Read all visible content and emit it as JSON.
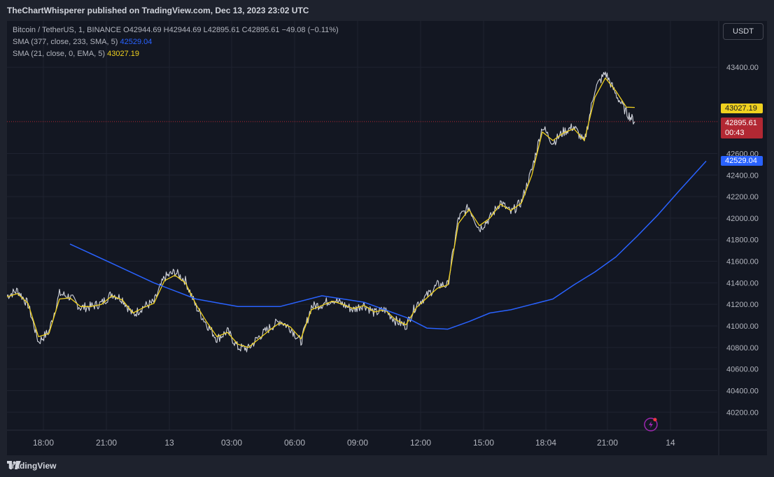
{
  "header": {
    "publisher_line": "TheChartWhisperer published on TradingView.com, Dec 13, 2023 23:02 UTC"
  },
  "legend": {
    "symbol": "Bitcoin / TetherUS, 1, BINANCE",
    "open_label": "O",
    "open": "42944.69",
    "high_label": "H",
    "high": "42944.69",
    "low_label": "L",
    "low": "42895.61",
    "close_label": "C",
    "close": "42895.61",
    "change": "−49.08 (−0.11%)",
    "sma1_label": "SMA (377, close, 233, SMA, 5)",
    "sma1_value": "42529.04",
    "sma2_label": "SMA (21, close, 0, EMA, 5)",
    "sma2_value": "43027.19"
  },
  "currency_button": "USDT",
  "price_tags": {
    "sma2": "43027.19",
    "last_price": "42895.61",
    "countdown": "00:43",
    "sma1": "42529.04"
  },
  "footer": {
    "brand": "TradingView"
  },
  "colors": {
    "background": "#131722",
    "price": "#d1d4dc",
    "sma_blue": "#2962ff",
    "ema_yellow": "#f0d11f",
    "last_price_red": "#b22833"
  },
  "chart_data": {
    "type": "line",
    "yticks": [
      40200,
      40400,
      40600,
      40800,
      41000,
      41200,
      41400,
      41600,
      41800,
      42000,
      42200,
      42400,
      42600,
      43400
    ],
    "xticks": [
      "18:00",
      "21:00",
      "13",
      "03:00",
      "06:00",
      "09:00",
      "12:00",
      "15:00",
      "18:04",
      "21:00",
      "14"
    ],
    "ylim": [
      40000,
      43700
    ],
    "series": [
      {
        "style": "price",
        "x": [
          0,
          0.5,
          1,
          1.5,
          2,
          2.5,
          3,
          3.5,
          4,
          4.5,
          5,
          5.5,
          6,
          6.5,
          7,
          7.5,
          8,
          8.5,
          9,
          9.5,
          10,
          10.5,
          11,
          11.5,
          12,
          12.5,
          13,
          13.5,
          14,
          14.5,
          15,
          15.5,
          16,
          16.5,
          17,
          17.5,
          18,
          18.5,
          19,
          19.5,
          20,
          20.5,
          21,
          21.5,
          22,
          22.5,
          23,
          23.5,
          24,
          24.5,
          25,
          25.5,
          26,
          26.5,
          27,
          27.5,
          28,
          28.5,
          29,
          29.5,
          29.9
        ],
        "values": [
          41280,
          41330,
          41200,
          40850,
          40950,
          41300,
          41270,
          41170,
          41180,
          41210,
          41300,
          41250,
          41100,
          41180,
          41220,
          41450,
          41500,
          41420,
          41180,
          41020,
          40880,
          40950,
          40800,
          40790,
          40900,
          40980,
          41050,
          40980,
          40850,
          41180,
          41200,
          41250,
          41200,
          41150,
          41200,
          41120,
          41150,
          41050,
          41000,
          41200,
          41280,
          41380,
          41380,
          42000,
          42100,
          41900,
          42000,
          42150,
          42050,
          42150,
          42450,
          42850,
          42700,
          42800,
          42850,
          42700,
          43200,
          43350,
          43150,
          42980,
          42895
        ]
      },
      {
        "name": "SMA (21, close, 0, EMA, 5)",
        "style": "ema",
        "x": [
          0,
          0.5,
          1,
          1.5,
          2,
          2.5,
          3,
          3.5,
          4,
          4.5,
          5,
          5.5,
          6,
          6.5,
          7,
          7.5,
          8,
          8.5,
          9,
          9.5,
          10,
          10.5,
          11,
          11.5,
          12,
          12.5,
          13,
          13.5,
          14,
          14.5,
          15,
          15.5,
          16,
          16.5,
          17,
          17.5,
          18,
          18.5,
          19,
          19.5,
          20,
          20.5,
          21,
          21.5,
          22,
          22.5,
          23,
          23.5,
          24,
          24.5,
          25,
          25.5,
          26,
          26.5,
          27,
          27.5,
          28,
          28.5,
          29,
          29.5,
          29.9
        ],
        "values": [
          41270,
          41300,
          41210,
          40900,
          40930,
          41250,
          41260,
          41180,
          41180,
          41200,
          41280,
          41240,
          41120,
          41170,
          41210,
          41420,
          41470,
          41400,
          41200,
          41040,
          40900,
          40940,
          40830,
          40800,
          40880,
          40960,
          41030,
          40990,
          40880,
          41150,
          41190,
          41230,
          41200,
          41160,
          41190,
          41130,
          41150,
          41060,
          41010,
          41170,
          41260,
          41350,
          41380,
          41950,
          42080,
          41930,
          42000,
          42130,
          42070,
          42140,
          42400,
          42800,
          42720,
          42790,
          42830,
          42720,
          43120,
          43300,
          43180,
          43030,
          43027.19
        ]
      },
      {
        "name": "SMA (377, close, 233, SMA, 5)",
        "style": "sma",
        "x": [
          3,
          5,
          7,
          9,
          11,
          13,
          15,
          17,
          19,
          20,
          21,
          22,
          23,
          24,
          25,
          26,
          27,
          28,
          29,
          30,
          31,
          32,
          33.3
        ],
        "values": [
          41760,
          41580,
          41400,
          41250,
          41180,
          41180,
          41280,
          41220,
          41080,
          40980,
          40970,
          41040,
          41120,
          41150,
          41200,
          41250,
          41380,
          41500,
          41640,
          41830,
          42030,
          42250,
          42529.04
        ]
      }
    ]
  }
}
